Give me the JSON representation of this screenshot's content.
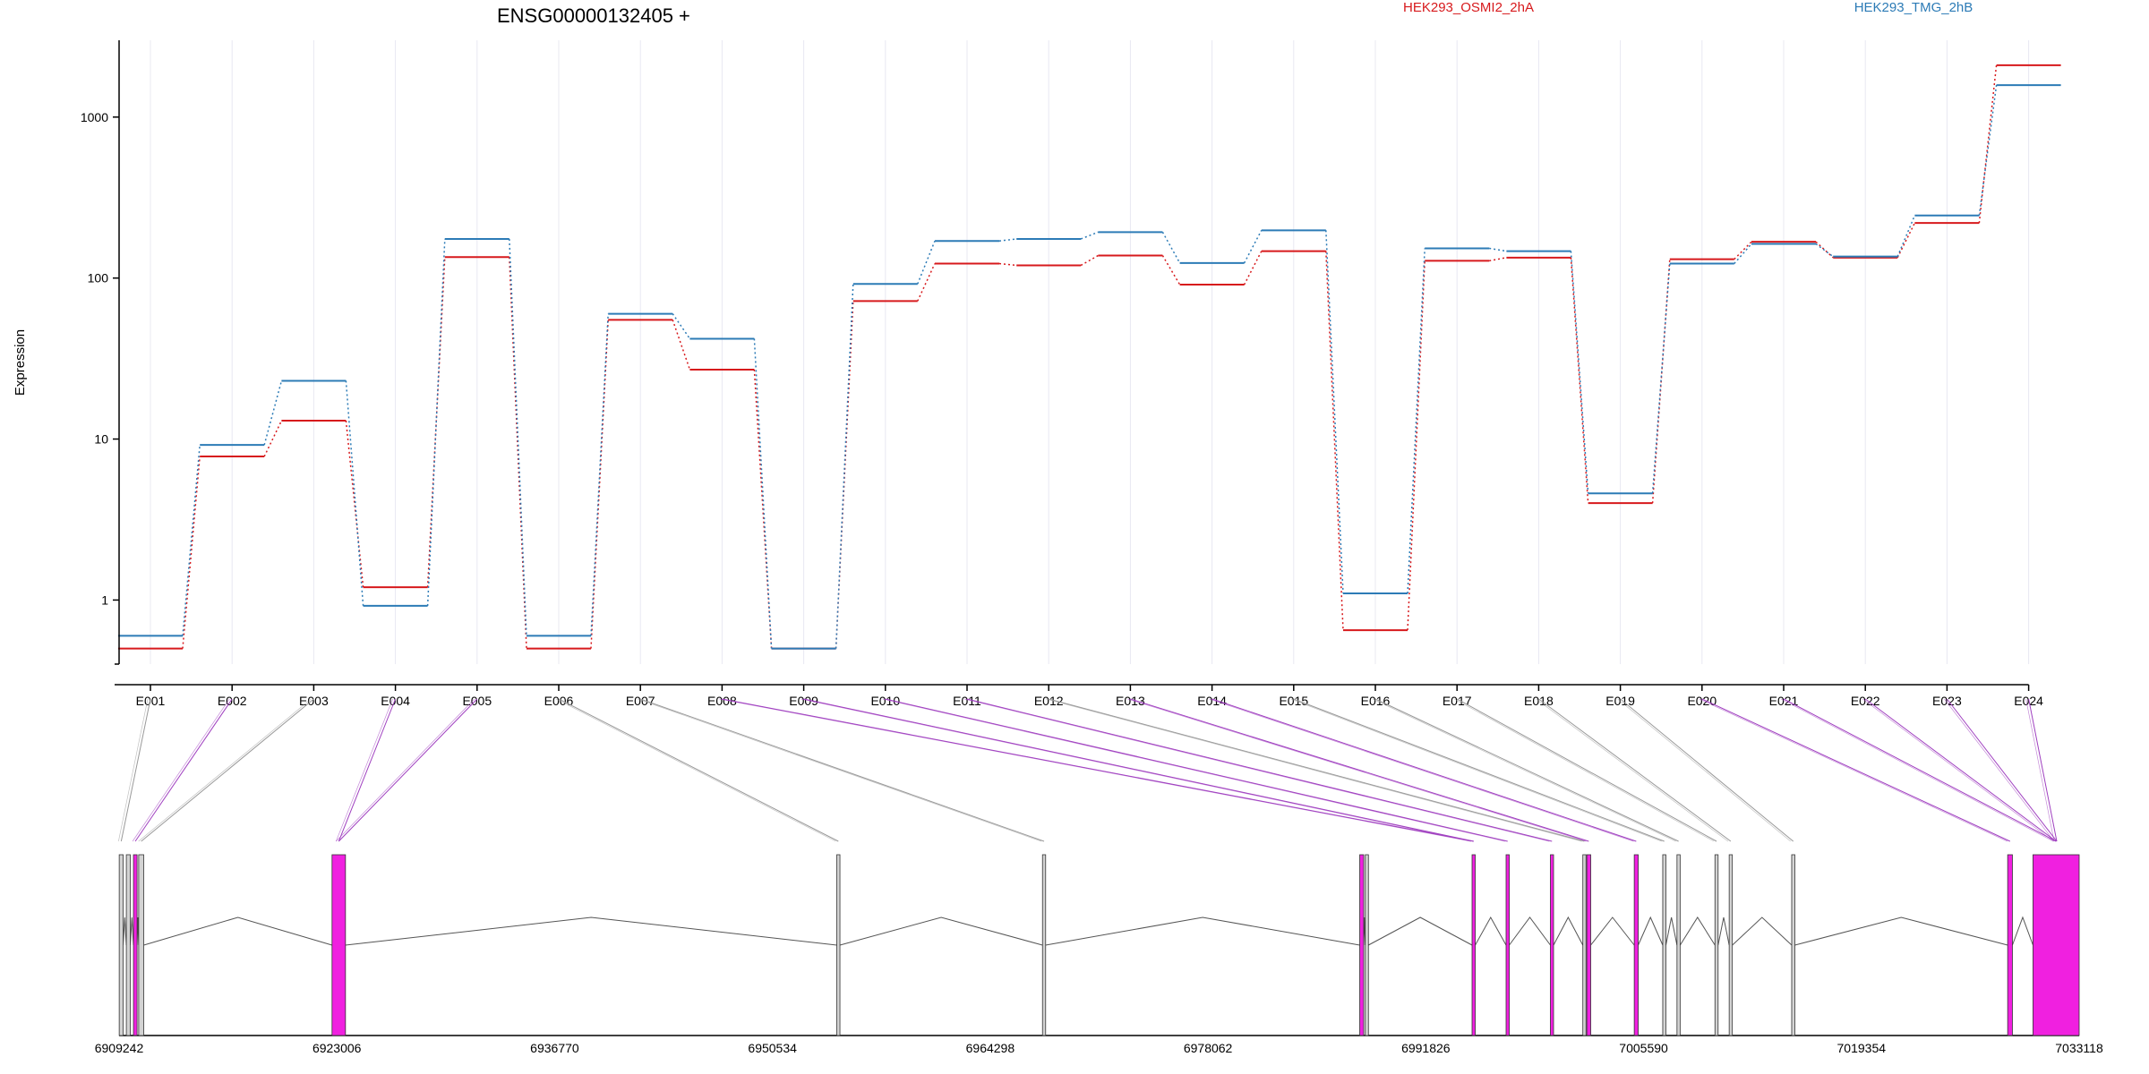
{
  "chart_data": {
    "type": "line",
    "title": "ENSG00000132405 +",
    "ylabel": "Expression",
    "yscale": "log",
    "ylim": [
      0.5,
      2900
    ],
    "y_ticks": [
      {
        "value": 1,
        "label": "1"
      },
      {
        "value": 10,
        "label": "10"
      },
      {
        "value": 100,
        "label": "100"
      },
      {
        "value": 1000,
        "label": "1000"
      }
    ],
    "categories": [
      "E001",
      "E002",
      "E003",
      "E004",
      "E005",
      "E006",
      "E007",
      "E008",
      "E009",
      "E010",
      "E011",
      "E012",
      "E013",
      "E014",
      "E015",
      "E016",
      "E017",
      "E018",
      "E019",
      "E020",
      "E021",
      "E022",
      "E023",
      "E024"
    ],
    "series": [
      {
        "name": "HEK293_OSMI2_2hA",
        "color": "#d7191c",
        "values": [
          0.5,
          7.8,
          13,
          1.2,
          135,
          0.5,
          55,
          27,
          0.5,
          72,
          123,
          120,
          138,
          91,
          147,
          0.65,
          128,
          134,
          4.0,
          131,
          168,
          134,
          220,
          2100
        ]
      },
      {
        "name": "HEK293_TMG_2hB",
        "color": "#2c7bb6",
        "values": [
          0.6,
          9.2,
          23,
          0.92,
          175,
          0.6,
          60,
          42,
          0.5,
          92,
          170,
          175,
          193,
          124,
          198,
          1.1,
          153,
          147,
          4.6,
          123,
          163,
          136,
          245,
          1580
        ]
      }
    ],
    "gene_model": {
      "genomic_range": [
        6909242,
        7033118
      ],
      "coordinate_ticks": [
        "6909242",
        "6923006",
        "6936770",
        "6950534",
        "6964298",
        "6978062",
        "6991826",
        "7005590",
        "7019354",
        "7033118"
      ],
      "exon_colors": {
        "normal": "#d3d3d3",
        "highlighted": "#f020e0"
      },
      "exons": [
        {
          "start": 6909250,
          "end": 6909500,
          "highlighted": false
        },
        {
          "start": 6909700,
          "end": 6909950,
          "highlighted": false
        },
        {
          "start": 6910150,
          "end": 6910380,
          "highlighted": true
        },
        {
          "start": 6910480,
          "end": 6910800,
          "highlighted": false
        },
        {
          "start": 6922700,
          "end": 6923550,
          "highlighted": true
        },
        {
          "start": 6954600,
          "end": 6954800,
          "highlighted": false
        },
        {
          "start": 6967600,
          "end": 6967800,
          "highlighted": false
        },
        {
          "start": 6987650,
          "end": 6987900,
          "highlighted": true
        },
        {
          "start": 6988000,
          "end": 6988200,
          "highlighted": false
        },
        {
          "start": 6994750,
          "end": 6994950,
          "highlighted": true
        },
        {
          "start": 6996900,
          "end": 6997100,
          "highlighted": true
        },
        {
          "start": 6999700,
          "end": 6999900,
          "highlighted": true
        },
        {
          "start": 7001750,
          "end": 7001950,
          "highlighted": false
        },
        {
          "start": 7002000,
          "end": 7002250,
          "highlighted": true
        },
        {
          "start": 7005000,
          "end": 7005250,
          "highlighted": true
        },
        {
          "start": 7006800,
          "end": 7007000,
          "highlighted": false
        },
        {
          "start": 7007700,
          "end": 7007900,
          "highlighted": false
        },
        {
          "start": 7010100,
          "end": 7010300,
          "highlighted": false
        },
        {
          "start": 7011000,
          "end": 7011200,
          "highlighted": false
        },
        {
          "start": 7014950,
          "end": 7015150,
          "highlighted": false
        },
        {
          "start": 7028600,
          "end": 7028900,
          "highlighted": true
        },
        {
          "start": 7030200,
          "end": 7033118,
          "highlighted": true
        }
      ],
      "bin_map": [
        0,
        2,
        3,
        4,
        4,
        5,
        6,
        9,
        9,
        10,
        11,
        12,
        13,
        14,
        15,
        16,
        17,
        18,
        19,
        20,
        21,
        21,
        23,
        24
      ]
    }
  }
}
